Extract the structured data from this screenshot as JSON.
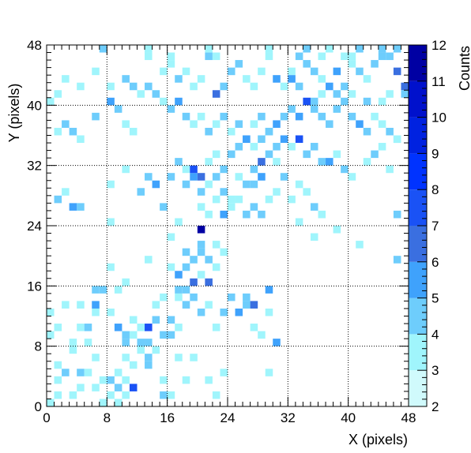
{
  "chart_data": {
    "type": "heatmap",
    "title": "",
    "xlabel": "X (pixels)",
    "ylabel": "Y (pixels)",
    "zlabel": "Counts",
    "xlim": [
      0,
      48
    ],
    "ylim": [
      0,
      48
    ],
    "zlim": [
      2,
      12
    ],
    "x_ticks": [
      "0",
      "8",
      "16",
      "24",
      "32",
      "40",
      "48"
    ],
    "y_ticks": [
      "0",
      "8",
      "16",
      "24",
      "32",
      "40",
      "48"
    ],
    "z_ticks": [
      "2",
      "3",
      "4",
      "5",
      "6",
      "7",
      "8",
      "9",
      "10",
      "11",
      "12"
    ],
    "grid": true,
    "legend": "right colorbar",
    "palette": [
      "#d0fafc",
      "#a0f5fc",
      "#6ecdfc",
      "#3fa2fc",
      "#3a6fe0",
      "#1a52f5",
      "#0033ff",
      "#0022e0",
      "#0011cc",
      "#0000a3"
    ],
    "cells": [
      [
        0,
        0,
        3
      ],
      [
        1,
        1,
        3
      ],
      [
        1,
        3,
        3
      ],
      [
        1,
        5,
        3
      ],
      [
        2,
        4,
        4
      ],
      [
        3,
        1,
        3
      ],
      [
        3,
        7,
        3
      ],
      [
        4,
        4,
        4
      ],
      [
        4,
        2,
        3
      ],
      [
        5,
        4,
        3
      ],
      [
        5,
        8,
        3
      ],
      [
        6,
        2,
        3
      ],
      [
        6,
        6,
        3
      ],
      [
        7,
        0,
        3
      ],
      [
        7,
        3,
        3
      ],
      [
        8,
        3,
        4
      ],
      [
        8,
        1,
        3
      ],
      [
        9,
        0,
        3
      ],
      [
        9,
        2,
        4
      ],
      [
        9,
        4,
        3
      ],
      [
        10,
        1,
        3
      ],
      [
        10,
        3,
        3
      ],
      [
        10,
        6,
        3
      ],
      [
        11,
        2,
        7
      ],
      [
        11,
        5,
        3
      ],
      [
        12,
        7,
        3
      ],
      [
        13,
        5,
        4
      ],
      [
        13,
        6,
        4
      ],
      [
        14,
        7,
        3
      ],
      [
        15,
        1,
        4
      ],
      [
        15,
        3,
        3
      ],
      [
        16,
        1,
        3
      ],
      [
        17,
        6,
        3
      ],
      [
        18,
        3,
        3
      ],
      [
        19,
        6,
        3
      ],
      [
        21,
        3,
        3
      ],
      [
        22,
        1,
        3
      ],
      [
        23,
        4,
        3
      ],
      [
        0,
        9,
        3
      ],
      [
        0,
        12,
        3
      ],
      [
        1,
        10,
        3
      ],
      [
        2,
        13,
        3
      ],
      [
        3,
        8,
        3
      ],
      [
        4,
        10,
        3
      ],
      [
        4,
        13,
        3
      ],
      [
        5,
        10,
        4
      ],
      [
        6,
        12,
        3
      ],
      [
        6,
        15,
        4
      ],
      [
        7,
        15,
        4
      ],
      [
        6,
        13,
        5
      ],
      [
        8,
        12,
        3
      ],
      [
        9,
        10,
        5
      ],
      [
        9,
        15,
        3
      ],
      [
        10,
        8,
        4
      ],
      [
        10,
        9,
        4
      ],
      [
        11,
        9,
        3
      ],
      [
        11,
        11,
        3
      ],
      [
        12,
        8,
        4
      ],
      [
        12,
        10,
        3
      ],
      [
        13,
        10,
        7
      ],
      [
        13,
        8,
        4
      ],
      [
        14,
        13,
        3
      ],
      [
        14,
        11,
        4
      ],
      [
        15,
        9,
        4
      ],
      [
        15,
        14,
        3
      ],
      [
        16,
        9,
        4
      ],
      [
        16,
        11,
        4
      ],
      [
        17,
        10,
        3
      ],
      [
        17,
        14,
        3
      ],
      [
        18,
        13,
        4
      ],
      [
        18,
        15,
        4
      ],
      [
        19,
        14,
        4
      ],
      [
        20,
        12,
        4
      ],
      [
        21,
        13,
        3
      ],
      [
        22,
        10,
        3
      ],
      [
        23,
        12,
        4
      ],
      [
        24,
        14,
        4
      ],
      [
        25,
        12,
        5
      ],
      [
        26,
        13,
        4
      ],
      [
        26,
        14,
        4
      ],
      [
        27,
        13,
        6
      ],
      [
        27,
        10,
        3
      ],
      [
        28,
        9,
        3
      ],
      [
        29,
        12,
        3
      ],
      [
        29,
        15,
        5
      ],
      [
        30,
        8,
        5
      ],
      [
        29,
        4,
        3
      ],
      [
        17,
        17,
        5
      ],
      [
        18,
        18,
        4
      ],
      [
        19,
        16,
        6
      ],
      [
        19,
        19,
        4
      ],
      [
        20,
        17,
        3
      ],
      [
        20,
        20,
        4
      ],
      [
        21,
        16,
        6
      ],
      [
        22,
        18,
        3
      ],
      [
        21,
        19,
        4
      ],
      [
        22,
        21,
        3
      ],
      [
        23,
        20,
        3
      ],
      [
        18,
        20,
        4
      ],
      [
        20,
        21,
        4
      ],
      [
        13,
        19,
        3
      ],
      [
        16,
        18,
        3
      ],
      [
        17,
        15,
        4
      ],
      [
        8,
        18,
        3
      ],
      [
        10,
        16,
        3
      ],
      [
        20,
        23,
        11
      ],
      [
        16,
        22,
        3
      ],
      [
        17,
        24,
        3
      ],
      [
        20,
        26,
        3
      ],
      [
        21,
        25,
        3
      ],
      [
        22,
        27,
        3
      ],
      [
        23,
        25,
        5
      ],
      [
        24,
        26,
        3
      ],
      [
        25,
        27,
        3
      ],
      [
        26,
        25,
        4
      ],
      [
        27,
        26,
        4
      ],
      [
        28,
        25,
        4
      ],
      [
        29,
        27,
        3
      ],
      [
        18,
        29,
        4
      ],
      [
        19,
        30,
        5
      ],
      [
        20,
        28,
        4
      ],
      [
        21,
        29,
        3
      ],
      [
        22,
        30,
        4
      ],
      [
        23,
        28,
        4
      ],
      [
        24,
        27,
        3
      ],
      [
        25,
        30,
        3
      ],
      [
        26,
        29,
        4
      ],
      [
        27,
        29,
        4
      ],
      [
        28,
        30,
        5
      ],
      [
        27,
        31,
        4
      ],
      [
        28,
        32,
        6
      ],
      [
        29,
        33,
        4
      ],
      [
        30,
        32,
        3
      ],
      [
        31,
        30,
        4
      ],
      [
        30,
        28,
        3
      ],
      [
        32,
        27,
        3
      ],
      [
        33,
        29,
        3
      ],
      [
        34,
        28,
        3
      ],
      [
        35,
        26,
        4
      ],
      [
        36,
        25,
        3
      ],
      [
        33,
        24,
        3
      ],
      [
        35,
        22,
        3
      ],
      [
        38,
        23,
        3
      ],
      [
        41,
        21,
        3
      ],
      [
        46,
        19,
        4
      ],
      [
        46,
        25,
        4
      ],
      [
        1,
        27,
        4
      ],
      [
        2,
        28,
        3
      ],
      [
        4,
        26,
        4
      ],
      [
        3,
        26,
        5
      ],
      [
        8,
        24,
        3
      ],
      [
        8,
        29,
        3
      ],
      [
        10,
        31,
        3
      ],
      [
        12,
        28,
        4
      ],
      [
        13,
        30,
        4
      ],
      [
        14,
        29,
        5
      ],
      [
        15,
        26,
        4
      ],
      [
        16,
        30,
        4
      ],
      [
        17,
        32,
        4
      ],
      [
        18,
        31,
        3
      ],
      [
        19,
        31,
        7
      ],
      [
        20,
        30,
        6
      ],
      [
        21,
        32,
        3
      ],
      [
        22,
        33,
        3
      ],
      [
        23,
        31,
        4
      ],
      [
        24,
        33,
        4
      ],
      [
        25,
        34,
        4
      ],
      [
        26,
        35,
        4
      ],
      [
        27,
        34,
        3
      ],
      [
        28,
        35,
        4
      ],
      [
        29,
        36,
        4
      ],
      [
        30,
        34,
        4
      ],
      [
        31,
        35,
        5
      ],
      [
        32,
        34,
        3
      ],
      [
        33,
        35,
        7
      ],
      [
        34,
        33,
        4
      ],
      [
        35,
        34,
        4
      ],
      [
        36,
        32,
        4
      ],
      [
        37,
        32,
        5
      ],
      [
        38,
        33,
        3
      ],
      [
        39,
        31,
        4
      ],
      [
        40,
        30,
        3
      ],
      [
        42,
        32,
        3
      ],
      [
        43,
        33,
        4
      ],
      [
        44,
        34,
        3
      ],
      [
        45,
        31,
        3
      ],
      [
        46,
        35,
        4
      ],
      [
        1,
        36,
        3
      ],
      [
        2,
        37,
        4
      ],
      [
        3,
        36,
        4
      ],
      [
        4,
        35,
        3
      ],
      [
        6,
        38,
        4
      ],
      [
        8,
        40,
        5
      ],
      [
        9,
        39,
        4
      ],
      [
        10,
        37,
        3
      ],
      [
        11,
        36,
        3
      ],
      [
        12,
        41,
        3
      ],
      [
        13,
        42,
        4
      ],
      [
        14,
        41,
        4
      ],
      [
        15,
        40,
        3
      ],
      [
        16,
        39,
        4
      ],
      [
        17,
        40,
        5
      ],
      [
        18,
        38,
        4
      ],
      [
        19,
        37,
        3
      ],
      [
        20,
        38,
        3
      ],
      [
        21,
        36,
        4
      ],
      [
        22,
        37,
        3
      ],
      [
        23,
        38,
        4
      ],
      [
        24,
        36,
        3
      ],
      [
        25,
        37,
        4
      ],
      [
        26,
        35,
        5
      ],
      [
        27,
        37,
        3
      ],
      [
        28,
        38,
        4
      ],
      [
        29,
        36,
        4
      ],
      [
        30,
        37,
        5
      ],
      [
        31,
        38,
        4
      ],
      [
        32,
        39,
        4
      ],
      [
        33,
        38,
        5
      ],
      [
        34,
        40,
        7
      ],
      [
        35,
        39,
        4
      ],
      [
        36,
        38,
        4
      ],
      [
        37,
        37,
        4
      ],
      [
        38,
        39,
        4
      ],
      [
        39,
        40,
        4
      ],
      [
        40,
        38,
        4
      ],
      [
        41,
        37,
        5
      ],
      [
        42,
        36,
        4
      ],
      [
        43,
        38,
        3
      ],
      [
        44,
        37,
        3
      ],
      [
        45,
        36,
        4
      ],
      [
        46,
        35,
        3
      ],
      [
        0,
        40,
        3
      ],
      [
        1,
        41,
        3
      ],
      [
        2,
        43,
        3
      ],
      [
        4,
        42,
        3
      ],
      [
        6,
        44,
        3
      ],
      [
        7,
        47,
        4
      ],
      [
        8,
        42,
        3
      ],
      [
        10,
        43,
        4
      ],
      [
        11,
        42,
        4
      ],
      [
        13,
        46,
        3
      ],
      [
        15,
        44,
        3
      ],
      [
        16,
        45,
        3
      ],
      [
        17,
        43,
        4
      ],
      [
        18,
        44,
        3
      ],
      [
        19,
        42,
        3
      ],
      [
        20,
        43,
        3
      ],
      [
        21,
        46,
        4
      ],
      [
        22,
        41,
        6
      ],
      [
        23,
        42,
        4
      ],
      [
        24,
        44,
        4
      ],
      [
        25,
        45,
        4
      ],
      [
        26,
        43,
        3
      ],
      [
        27,
        42,
        3
      ],
      [
        28,
        44,
        3
      ],
      [
        29,
        46,
        3
      ],
      [
        30,
        43,
        5
      ],
      [
        31,
        42,
        3
      ],
      [
        32,
        44,
        3
      ],
      [
        33,
        46,
        4
      ],
      [
        34,
        45,
        4
      ],
      [
        35,
        44,
        4
      ],
      [
        36,
        43,
        3
      ],
      [
        37,
        42,
        5
      ],
      [
        38,
        44,
        5
      ],
      [
        39,
        46,
        3
      ],
      [
        40,
        45,
        3
      ],
      [
        41,
        44,
        4
      ],
      [
        42,
        43,
        3
      ],
      [
        43,
        45,
        4
      ],
      [
        44,
        47,
        4
      ],
      [
        45,
        46,
        4
      ],
      [
        46,
        44,
        6
      ],
      [
        47,
        42,
        6
      ],
      [
        13,
        47,
        3
      ],
      [
        16,
        46,
        3
      ],
      [
        21,
        47,
        3
      ],
      [
        22,
        46,
        3
      ],
      [
        29,
        47,
        3
      ],
      [
        34,
        47,
        4
      ],
      [
        36,
        46,
        3
      ],
      [
        37,
        47,
        3
      ],
      [
        40,
        46,
        3
      ],
      [
        41,
        47,
        4
      ],
      [
        44,
        46,
        4
      ],
      [
        46,
        47,
        4
      ],
      [
        47,
        41,
        4
      ],
      [
        36,
        41,
        3
      ],
      [
        35,
        40,
        4
      ],
      [
        33,
        42,
        4
      ],
      [
        32,
        43,
        5
      ],
      [
        38,
        41,
        4
      ],
      [
        40,
        41,
        3
      ],
      [
        39,
        42,
        4
      ],
      [
        42,
        40,
        4
      ],
      [
        44,
        40,
        3
      ],
      [
        45,
        41,
        3
      ]
    ]
  }
}
